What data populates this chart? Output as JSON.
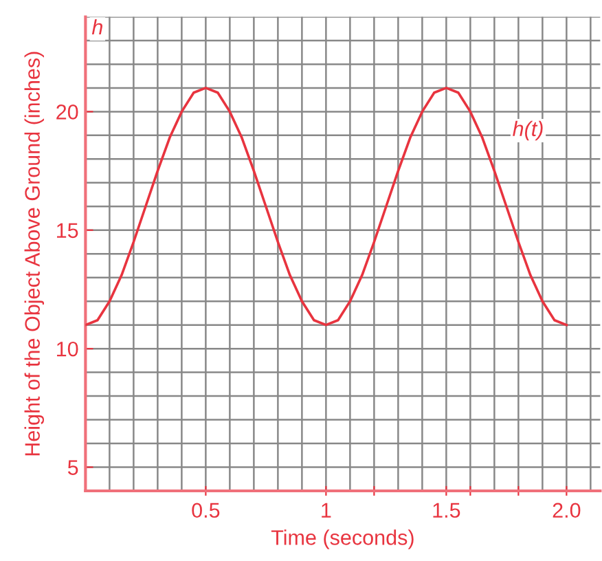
{
  "chart_data": {
    "type": "line",
    "xlabel": "Time (seconds)",
    "ylabel": "Height of the Object Above Ground (inches)",
    "x": [
      0,
      0.05,
      0.1,
      0.15,
      0.2,
      0.25,
      0.3,
      0.35,
      0.4,
      0.45,
      0.5,
      0.55,
      0.6,
      0.65,
      0.7,
      0.75,
      0.8,
      0.85,
      0.9,
      0.95,
      1,
      1.05,
      1.1,
      1.15,
      1.2,
      1.25,
      1.3,
      1.35,
      1.4,
      1.45,
      1.5,
      1.55,
      1.6,
      1.65,
      1.7,
      1.75,
      1.8,
      1.85,
      1.9,
      1.95,
      2
    ],
    "series": [
      {
        "color": "#e8343f",
        "values": [
          11,
          11.2,
          12,
          13.1,
          14.5,
          16,
          17.5,
          18.9,
          20,
          20.8,
          21,
          20.8,
          20,
          18.9,
          17.5,
          16,
          14.5,
          13.1,
          12,
          11.2,
          11,
          11.2,
          12,
          13.1,
          14.5,
          16,
          17.5,
          18.9,
          20,
          20.8,
          21,
          20.8,
          20,
          18.9,
          17.5,
          16,
          14.5,
          13.1,
          12,
          11.2,
          11
        ]
      }
    ],
    "xlim": [
      0,
      2.14
    ],
    "ylim": [
      4,
      24
    ],
    "xticks": [
      0.5,
      1,
      {
        "value": 1.2,
        "label": null
      },
      1.5,
      {
        "value": 1.6,
        "label": null
      },
      {
        "value": 1.8,
        "label": null
      },
      {
        "value": 2,
        "label": "2.0"
      }
    ],
    "yticks": [
      5,
      10,
      15,
      20
    ],
    "grid": true,
    "marker": "none",
    "line_style": "solid",
    "annotations": [
      "h(t)",
      "h"
    ]
  }
}
